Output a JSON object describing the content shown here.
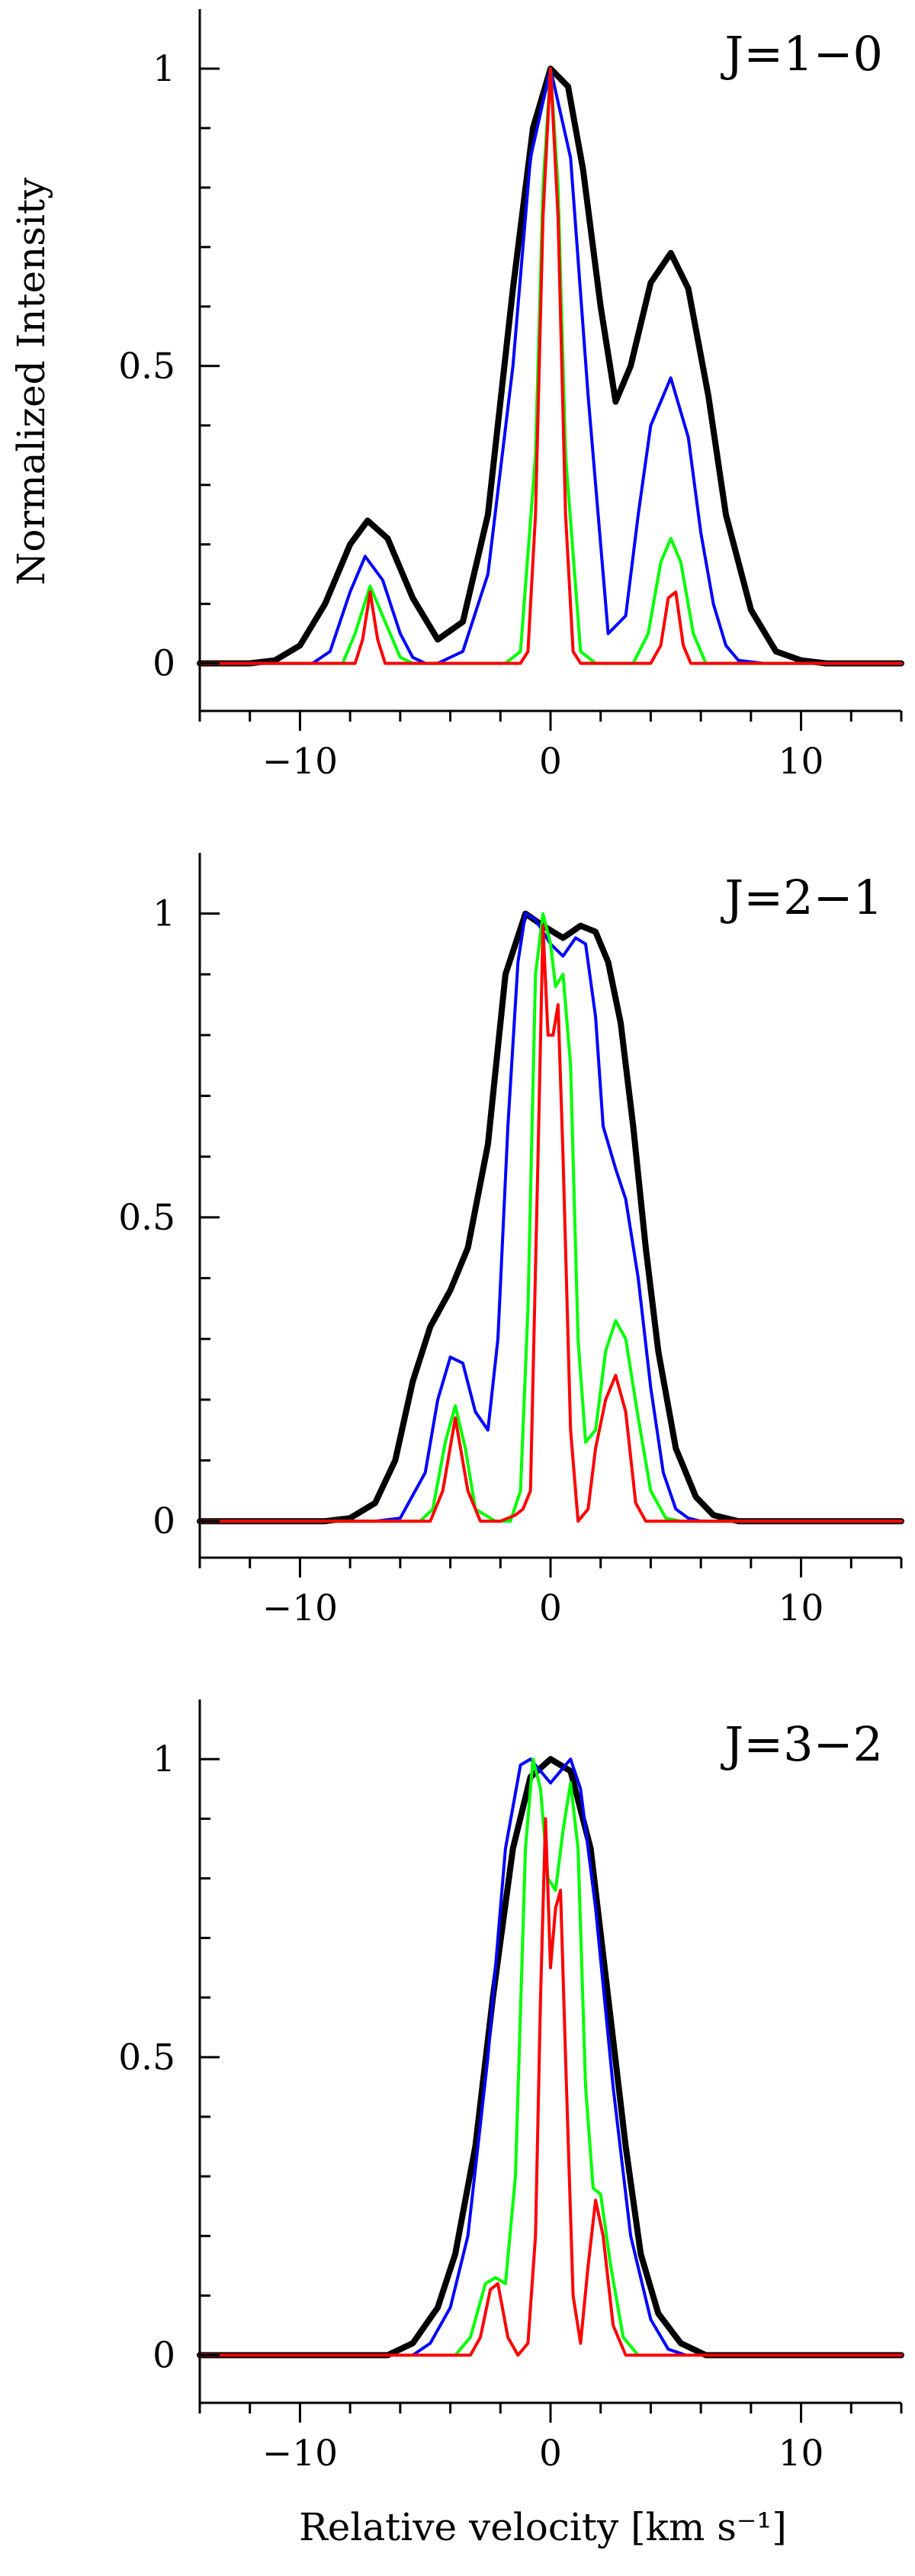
{
  "chart_data": {
    "type": "line",
    "ylabel": "Normalized Intensity",
    "xlabel": "Relative velocity [km s⁻¹]",
    "series_colors": [
      "#000000",
      "#0000ff",
      "#00ff00",
      "#ff0000"
    ],
    "panels": [
      {
        "title": "J=1−0",
        "xlim": [
          -14,
          14
        ],
        "ylim": [
          -0.08,
          1.1
        ],
        "xticks": [
          -10,
          0,
          10
        ],
        "yticks": [
          {
            "v": 0,
            "label": "0"
          },
          {
            "v": 0.5,
            "label": "0.5"
          },
          {
            "v": 1,
            "label": "1"
          }
        ],
        "series": [
          {
            "color": "#000000",
            "width": 8,
            "x": [
              -14,
              -12,
              -11,
              -10,
              -9,
              -8,
              -7.3,
              -6.5,
              -5.5,
              -4.5,
              -3.5,
              -2.5,
              -1.5,
              -0.7,
              0,
              0.7,
              1.3,
              2,
              2.6,
              3.2,
              4,
              4.8,
              5.5,
              6.3,
              7,
              8,
              9,
              10,
              11,
              12,
              14
            ],
            "y": [
              0,
              0,
              0.005,
              0.03,
              0.1,
              0.2,
              0.24,
              0.21,
              0.11,
              0.04,
              0.07,
              0.25,
              0.63,
              0.9,
              1.0,
              0.97,
              0.83,
              0.6,
              0.44,
              0.5,
              0.64,
              0.69,
              0.63,
              0.45,
              0.25,
              0.09,
              0.02,
              0.005,
              0,
              0,
              0
            ]
          },
          {
            "color": "#0000ff",
            "width": 4,
            "x": [
              -14,
              -9.5,
              -8.8,
              -8,
              -7.4,
              -6.7,
              -6,
              -5.5,
              -5,
              -4.5,
              -3.5,
              -2.5,
              -1.5,
              -0.8,
              0,
              0.8,
              1.5,
              2.3,
              3,
              3.5,
              4,
              4.8,
              5.5,
              6,
              6.5,
              7,
              7.5,
              8.5,
              14
            ],
            "y": [
              0,
              0,
              0.02,
              0.12,
              0.18,
              0.14,
              0.05,
              0.01,
              0,
              0,
              0.02,
              0.15,
              0.5,
              0.85,
              1.0,
              0.85,
              0.45,
              0.05,
              0.08,
              0.25,
              0.4,
              0.48,
              0.38,
              0.22,
              0.1,
              0.03,
              0.005,
              0,
              0
            ]
          },
          {
            "color": "#00ff00",
            "width": 4,
            "x": [
              -14,
              -8.3,
              -7.8,
              -7.2,
              -6.6,
              -6,
              -5.5,
              -1.8,
              -1.2,
              -0.6,
              -0.3,
              0,
              0.3,
              0.6,
              1.2,
              1.8,
              3.3,
              3.9,
              4.4,
              4.8,
              5.2,
              5.7,
              6.2,
              14
            ],
            "y": [
              0,
              0,
              0.05,
              0.13,
              0.07,
              0.01,
              0,
              0,
              0.02,
              0.35,
              0.8,
              1.0,
              0.8,
              0.35,
              0.02,
              0,
              0,
              0.05,
              0.17,
              0.21,
              0.17,
              0.05,
              0,
              0
            ]
          },
          {
            "color": "#ff0000",
            "width": 4,
            "x": [
              -14,
              -7.8,
              -7.5,
              -7.2,
              -6.9,
              -6.6,
              -1.2,
              -0.9,
              -0.6,
              -0.3,
              0,
              0.3,
              0.6,
              0.9,
              1.2,
              4,
              4.4,
              4.7,
              5,
              5.3,
              5.6,
              14
            ],
            "y": [
              0,
              0,
              0.04,
              0.12,
              0.04,
              0,
              0,
              0.02,
              0.25,
              0.75,
              1.0,
              0.75,
              0.25,
              0.02,
              0,
              0,
              0.03,
              0.11,
              0.12,
              0.03,
              0,
              0
            ]
          }
        ]
      },
      {
        "title": "J=2−1",
        "xlim": [
          -14,
          14
        ],
        "ylim": [
          -0.06,
          1.1
        ],
        "xticks": [
          -10,
          0,
          10
        ],
        "yticks": [
          {
            "v": 0,
            "label": "0"
          },
          {
            "v": 0.5,
            "label": "0.5"
          },
          {
            "v": 1,
            "label": "1"
          }
        ],
        "series": [
          {
            "color": "#000000",
            "width": 8,
            "x": [
              -14,
              -9,
              -8,
              -7,
              -6.2,
              -5.5,
              -4.8,
              -4,
              -3.3,
              -2.5,
              -1.8,
              -1,
              -0.3,
              0.5,
              1.2,
              1.8,
              2.3,
              2.8,
              3.3,
              3.8,
              4.3,
              5,
              5.8,
              6.5,
              7.5,
              8.5,
              14
            ],
            "y": [
              0,
              0,
              0.005,
              0.03,
              0.1,
              0.23,
              0.32,
              0.38,
              0.45,
              0.62,
              0.9,
              1.0,
              0.98,
              0.96,
              0.98,
              0.97,
              0.92,
              0.82,
              0.65,
              0.45,
              0.28,
              0.12,
              0.04,
              0.01,
              0,
              0,
              0
            ]
          },
          {
            "color": "#0000ff",
            "width": 4,
            "x": [
              -14,
              -7,
              -6,
              -5,
              -4.5,
              -4,
              -3.5,
              -3,
              -2.5,
              -2.1,
              -1.7,
              -1.3,
              -1,
              -0.6,
              0,
              0.5,
              1,
              1.4,
              1.8,
              2.1,
              2.6,
              3,
              3.5,
              4,
              4.5,
              5,
              5.5,
              6,
              7,
              14
            ],
            "y": [
              0,
              0,
              0.005,
              0.08,
              0.2,
              0.27,
              0.26,
              0.18,
              0.15,
              0.3,
              0.65,
              0.92,
              1.0,
              0.99,
              0.95,
              0.93,
              0.96,
              0.95,
              0.83,
              0.65,
              0.58,
              0.53,
              0.4,
              0.22,
              0.08,
              0.02,
              0.005,
              0,
              0,
              0
            ]
          },
          {
            "color": "#00ff00",
            "width": 4,
            "x": [
              -14,
              -5.2,
              -4.7,
              -4.2,
              -3.8,
              -3.4,
              -3,
              -2.2,
              -1.6,
              -1.2,
              -0.9,
              -0.6,
              -0.3,
              0,
              0.2,
              0.5,
              0.8,
              1.1,
              1.4,
              1.8,
              2.2,
              2.6,
              3,
              3.5,
              4,
              4.6,
              5.2,
              14
            ],
            "y": [
              0,
              0,
              0.02,
              0.13,
              0.19,
              0.12,
              0.02,
              0,
              0,
              0.05,
              0.35,
              0.9,
              1.0,
              0.95,
              0.88,
              0.9,
              0.75,
              0.3,
              0.13,
              0.15,
              0.28,
              0.33,
              0.3,
              0.17,
              0.05,
              0.005,
              0,
              0
            ]
          },
          {
            "color": "#ff0000",
            "width": 4,
            "x": [
              -14,
              -4.8,
              -4.3,
              -3.8,
              -3.3,
              -2.8,
              -2,
              -1.4,
              -1.1,
              -0.8,
              -0.5,
              -0.3,
              -0.1,
              0.1,
              0.3,
              0.5,
              0.8,
              1.1,
              1.5,
              1.8,
              2.2,
              2.6,
              3,
              3.4,
              3.8,
              14
            ],
            "y": [
              0,
              0,
              0.05,
              0.17,
              0.05,
              0,
              0,
              0.01,
              0.02,
              0.05,
              0.6,
              0.98,
              0.8,
              0.8,
              0.85,
              0.6,
              0.15,
              0,
              0.02,
              0.12,
              0.2,
              0.24,
              0.18,
              0.03,
              0,
              0
            ]
          }
        ]
      },
      {
        "title": "J=3−2",
        "xlim": [
          -14,
          14
        ],
        "ylim": [
          -0.08,
          1.1
        ],
        "xticks": [
          -10,
          0,
          10
        ],
        "yticks": [
          {
            "v": 0,
            "label": "0"
          },
          {
            "v": 0.5,
            "label": "0.5"
          },
          {
            "v": 1,
            "label": "1"
          }
        ],
        "series": [
          {
            "color": "#000000",
            "width": 8,
            "x": [
              -14,
              -6.5,
              -5.5,
              -4.5,
              -3.8,
              -3,
              -2.3,
              -1.5,
              -0.8,
              0,
              0.8,
              1.6,
              2.3,
              3,
              3.6,
              4.3,
              5.2,
              6.2,
              14
            ],
            "y": [
              0,
              0,
              0.02,
              0.08,
              0.17,
              0.35,
              0.6,
              0.85,
              0.97,
              1.0,
              0.98,
              0.85,
              0.6,
              0.35,
              0.17,
              0.07,
              0.02,
              0,
              0
            ]
          },
          {
            "color": "#0000ff",
            "width": 4,
            "x": [
              -14,
              -5.5,
              -4.8,
              -4,
              -3.3,
              -2.5,
              -1.8,
              -1.2,
              -0.8,
              -0.4,
              0,
              0.4,
              0.8,
              1.2,
              1.8,
              2.5,
              3.2,
              4,
              4.7,
              5.4,
              14
            ],
            "y": [
              0,
              0,
              0.02,
              0.08,
              0.2,
              0.5,
              0.85,
              0.99,
              1.0,
              0.98,
              0.96,
              0.98,
              1.0,
              0.95,
              0.75,
              0.45,
              0.2,
              0.06,
              0.01,
              0,
              0
            ]
          },
          {
            "color": "#00ff00",
            "width": 4,
            "x": [
              -14,
              -3.8,
              -3.2,
              -2.6,
              -2.2,
              -1.8,
              -1.4,
              -1,
              -0.7,
              -0.4,
              -0.1,
              0.2,
              0.5,
              0.8,
              1.1,
              1.4,
              1.7,
              2,
              2.4,
              2.9,
              3.5,
              14
            ],
            "y": [
              0,
              0,
              0.03,
              0.12,
              0.13,
              0.12,
              0.3,
              0.85,
              1.0,
              0.95,
              0.8,
              0.78,
              0.88,
              0.96,
              0.85,
              0.45,
              0.28,
              0.27,
              0.15,
              0.03,
              0,
              0
            ]
          },
          {
            "color": "#ff0000",
            "width": 4,
            "x": [
              -14,
              -3.2,
              -2.8,
              -2.4,
              -2.1,
              -1.7,
              -1.3,
              -0.9,
              -0.6,
              -0.4,
              -0.2,
              0,
              0.2,
              0.4,
              0.6,
              0.9,
              1.2,
              1.5,
              1.8,
              2.1,
              2.5,
              3,
              14
            ],
            "y": [
              0,
              0,
              0.03,
              0.11,
              0.12,
              0.03,
              0,
              0.02,
              0.2,
              0.6,
              0.9,
              0.65,
              0.75,
              0.78,
              0.5,
              0.1,
              0.02,
              0.15,
              0.26,
              0.2,
              0.05,
              0,
              0
            ]
          }
        ]
      }
    ]
  }
}
